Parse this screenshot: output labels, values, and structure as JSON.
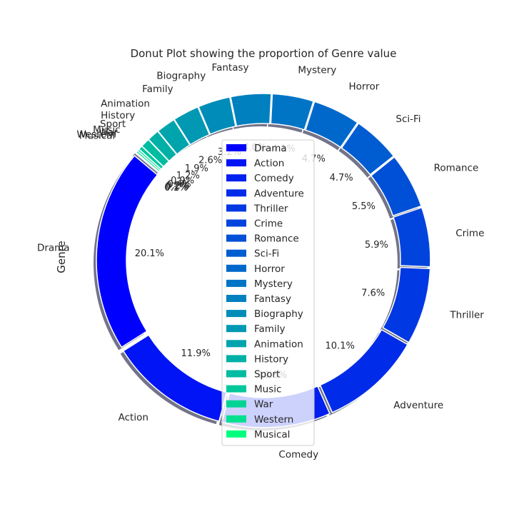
{
  "chart_data": {
    "type": "pie",
    "variant": "donut",
    "title": "Donut Plot showing the proportion of Genre value",
    "ylabel": "Genre",
    "legend": "center",
    "shadow": true,
    "categories": [
      "Drama",
      "Action",
      "Comedy",
      "Adventure",
      "Thriller",
      "Crime",
      "Romance",
      "Sci-Fi",
      "Horror",
      "Mystery",
      "Fantasy",
      "Biography",
      "Family",
      "Animation",
      "History",
      "Sport",
      "Music",
      "War",
      "Western",
      "Musical"
    ],
    "values": [
      20.1,
      11.9,
      10.8,
      10.1,
      7.6,
      5.9,
      5.5,
      4.7,
      4.7,
      4.1,
      4.0,
      3.2,
      2.6,
      1.9,
      1.2,
      0.9,
      0.4,
      0.2,
      0.2,
      0.1
    ],
    "labels": [
      "20.1%",
      "11.9%",
      "10.8%",
      "10.1%",
      "7.6%",
      "5.9%",
      "5.5%",
      "4.7%",
      "4.7%",
      "4.1%",
      "4.0%",
      "3.2%",
      "2.6%",
      "1.9%",
      "1.2%",
      "0.9%",
      "0.4%",
      "0.2%",
      "0.2%",
      "0.1%"
    ],
    "colors": [
      "#0000ff",
      "#0014f5",
      "#0020ef",
      "#002ce9",
      "#0038e3",
      "#0044dd",
      "#0050d7",
      "#005cd1",
      "#0068cb",
      "#0074c5",
      "#0080bf",
      "#008cb9",
      "#0098b3",
      "#00a4ad",
      "#00b0a7",
      "#00bca1",
      "#00c89b",
      "#00d495",
      "#00e08f",
      "#00ff7f"
    ]
  }
}
